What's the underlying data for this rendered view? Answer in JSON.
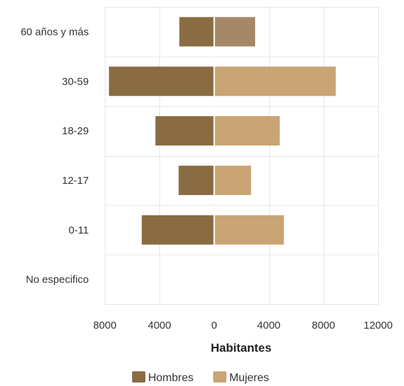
{
  "chart_data": {
    "type": "bar",
    "orientation": "horizontal",
    "layout": "population-pyramid",
    "categories": [
      "60 años y más",
      "30-59",
      "18-29",
      "12-17",
      "0-11",
      "No especifico"
    ],
    "series": [
      {
        "name": "Hombres",
        "color": "#8a6c43",
        "values": [
          2550,
          7700,
          4300,
          2600,
          5300,
          0
        ]
      },
      {
        "name": "Mujeres",
        "color": "#c9a474",
        "values": [
          3000,
          8900,
          4800,
          2700,
          5100,
          0
        ]
      }
    ],
    "xlabel": "Habitantes",
    "xlim": [
      -8000,
      12000
    ],
    "xticks": [
      -8000,
      -4000,
      0,
      4000,
      8000,
      12000
    ],
    "xtick_labels": [
      "8000",
      "4000",
      "0",
      "4000",
      "8000",
      "12000"
    ],
    "grid": true,
    "legend_position": "bottom-center",
    "highlight_color": "#a58867"
  }
}
